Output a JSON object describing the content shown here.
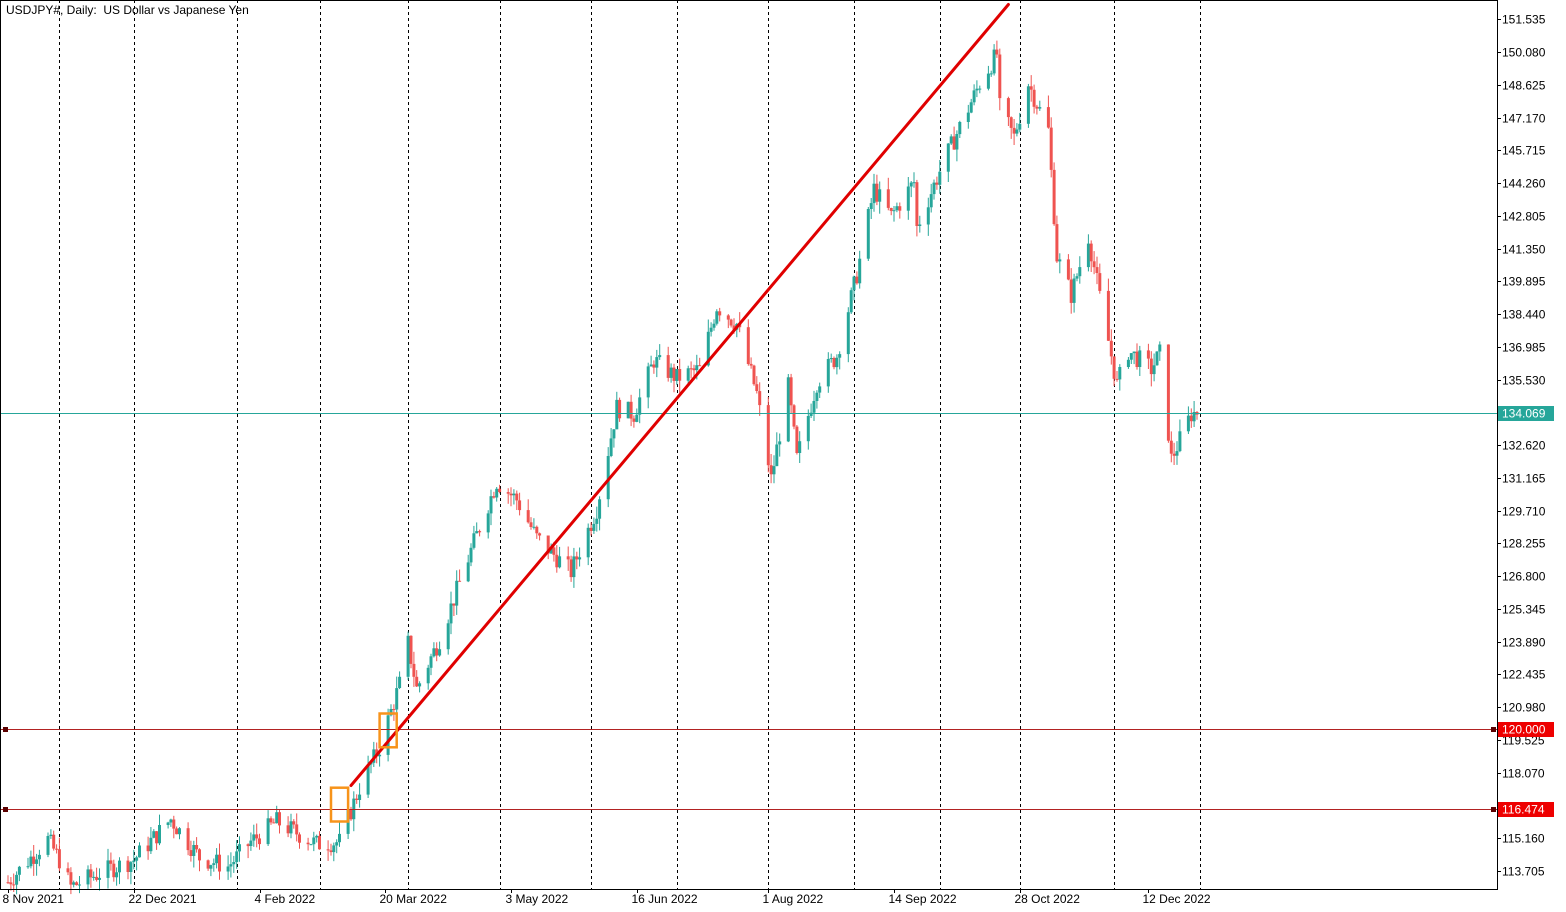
{
  "chart_data": {
    "type": "candlestick",
    "title": "USDJPY#, Daily:  US Dollar vs Japanese Yen",
    "colors": {
      "bull": "#26a69a",
      "bear": "#ef5350",
      "trendline": "#e00000",
      "box": "#f7931a",
      "level_line": "#b22222",
      "current_line": "#26a69a",
      "grid": "#000000",
      "axis_text": "#000000"
    },
    "y_ticks": [
      "151.535",
      "150.080",
      "148.625",
      "147.170",
      "145.715",
      "144.260",
      "142.805",
      "141.350",
      "139.895",
      "138.440",
      "136.985",
      "135.530",
      "132.620",
      "131.165",
      "129.710",
      "128.255",
      "126.800",
      "125.345",
      "123.890",
      "122.435",
      "120.980",
      "119.525",
      "118.070",
      "115.160",
      "113.705"
    ],
    "y_range": [
      112.9,
      152.4
    ],
    "x_ticks": [
      {
        "label": "8 Nov 2021",
        "date": "2021-11-08"
      },
      {
        "label": "22 Dec 2021",
        "date": "2021-12-22"
      },
      {
        "label": "4 Feb 2022",
        "date": "2022-02-04"
      },
      {
        "label": "20 Mar 2022",
        "date": "2022-03-20"
      },
      {
        "label": "3 May 2022",
        "date": "2022-05-03"
      },
      {
        "label": "16 Jun 2022",
        "date": "2022-06-16"
      },
      {
        "label": "1 Aug 2022",
        "date": "2022-08-01"
      },
      {
        "label": "14 Sep 2022",
        "date": "2022-09-14"
      },
      {
        "label": "28 Oct 2022",
        "date": "2022-10-28"
      },
      {
        "label": "12 Dec 2022",
        "date": "2022-12-12"
      }
    ],
    "vgrid_dates": [
      "2021-11-26",
      "2021-12-22",
      "2022-01-27",
      "2022-02-25",
      "2022-03-28",
      "2022-04-29",
      "2022-05-31",
      "2022-06-30",
      "2022-08-01",
      "2022-08-31",
      "2022-09-30",
      "2022-10-28",
      "2022-11-30",
      "2022-12-30"
    ],
    "levels": [
      {
        "price": 120.0,
        "label": "120.000"
      },
      {
        "price": 116.474,
        "label": "116.474"
      }
    ],
    "current_price": {
      "price": 134.069,
      "label": "134.069"
    },
    "trendline": {
      "from": {
        "date": "2022-03-08",
        "price": 117.5
      },
      "to": {
        "date": "2022-10-24",
        "price": 152.2
      }
    },
    "highlight_boxes": [
      {
        "from_date": "2022-03-01",
        "to_date": "2022-03-07",
        "low": 115.9,
        "high": 117.4
      },
      {
        "from_date": "2022-03-18",
        "to_date": "2022-03-24",
        "low": 119.2,
        "high": 120.7
      }
    ],
    "price_path": [
      [
        "2021-11-08",
        113.2
      ],
      [
        "2021-11-22",
        115.1
      ],
      [
        "2021-11-26",
        114.2
      ],
      [
        "2021-11-30",
        113.0
      ],
      [
        "2021-12-10",
        113.6
      ],
      [
        "2021-12-22",
        114.2
      ],
      [
        "2022-01-04",
        116.0
      ],
      [
        "2022-01-14",
        114.3
      ],
      [
        "2022-01-24",
        113.9
      ],
      [
        "2022-02-01",
        115.0
      ],
      [
        "2022-02-10",
        115.9
      ],
      [
        "2022-02-24",
        114.9
      ],
      [
        "2022-03-04",
        115.0
      ],
      [
        "2022-03-11",
        117.4
      ],
      [
        "2022-03-18",
        119.2
      ],
      [
        "2022-03-25",
        122.0
      ],
      [
        "2022-03-28",
        123.8
      ],
      [
        "2022-03-31",
        121.8
      ],
      [
        "2022-04-08",
        124.0
      ],
      [
        "2022-04-20",
        128.3
      ],
      [
        "2022-04-28",
        131.0
      ],
      [
        "2022-05-05",
        130.2
      ],
      [
        "2022-05-12",
        128.5
      ],
      [
        "2022-05-24",
        127.0
      ],
      [
        "2022-06-02",
        129.8
      ],
      [
        "2022-06-09",
        134.3
      ],
      [
        "2022-06-15",
        134.0
      ],
      [
        "2022-06-22",
        136.4
      ],
      [
        "2022-06-30",
        135.6
      ],
      [
        "2022-07-08",
        136.0
      ],
      [
        "2022-07-14",
        138.8
      ],
      [
        "2022-07-21",
        138.0
      ],
      [
        "2022-07-28",
        134.9
      ],
      [
        "2022-08-02",
        131.1
      ],
      [
        "2022-08-08",
        135.2
      ],
      [
        "2022-08-11",
        132.0
      ],
      [
        "2022-08-18",
        135.4
      ],
      [
        "2022-08-25",
        136.6
      ],
      [
        "2022-09-01",
        140.2
      ],
      [
        "2022-09-07",
        144.0
      ],
      [
        "2022-09-13",
        142.8
      ],
      [
        "2022-09-21",
        144.3
      ],
      [
        "2022-09-22",
        142.3
      ],
      [
        "2022-09-30",
        144.8
      ],
      [
        "2022-10-14",
        148.7
      ],
      [
        "2022-10-20",
        150.0
      ],
      [
        "2022-10-21",
        147.6
      ],
      [
        "2022-10-26",
        146.3
      ],
      [
        "2022-10-31",
        148.7
      ],
      [
        "2022-11-07",
        146.6
      ],
      [
        "2022-11-10",
        141.0
      ],
      [
        "2022-11-15",
        139.3
      ],
      [
        "2022-11-21",
        141.9
      ],
      [
        "2022-11-25",
        139.2
      ],
      [
        "2022-12-01",
        135.3
      ],
      [
        "2022-12-05",
        136.8
      ],
      [
        "2022-12-13",
        136.0
      ],
      [
        "2022-12-16",
        136.7
      ],
      [
        "2022-12-20",
        132.0
      ],
      [
        "2022-12-27",
        134.0
      ],
      [
        "2022-12-29",
        134.1
      ]
    ]
  }
}
